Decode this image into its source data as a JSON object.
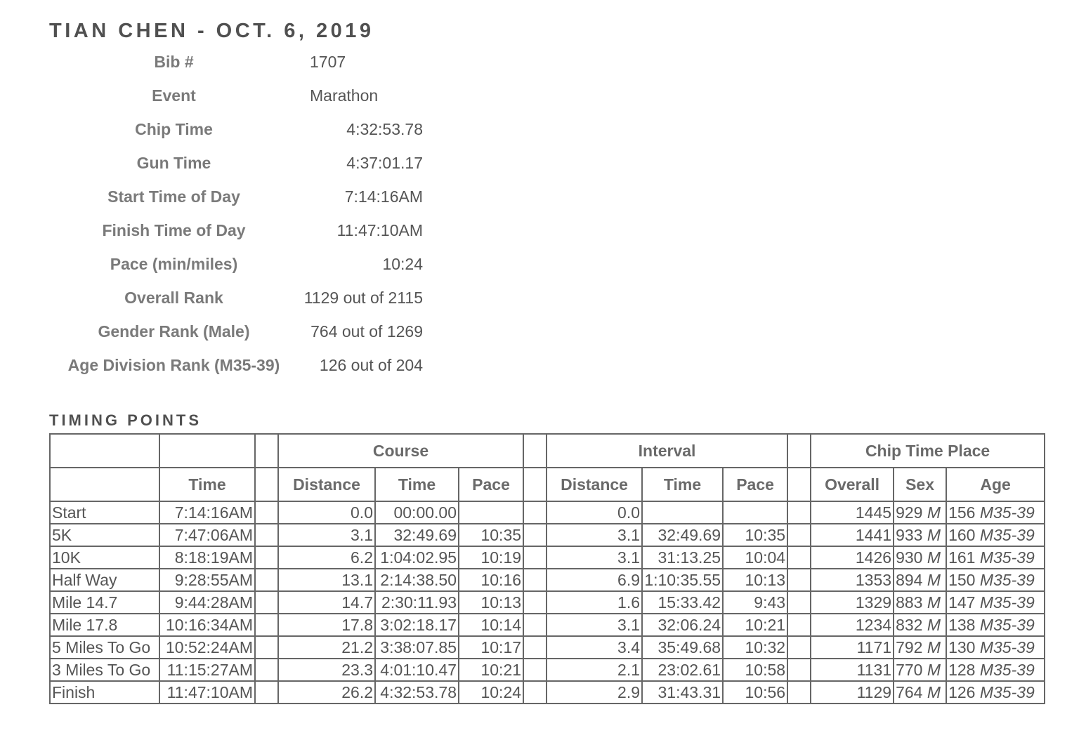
{
  "header": {
    "title": "TIAN CHEN - OCT. 6, 2019"
  },
  "summary": [
    {
      "label": "Bib #",
      "value": "1707",
      "align": "left"
    },
    {
      "label": "Event",
      "value": "Marathon",
      "align": "left"
    },
    {
      "label": "Chip Time",
      "value": "4:32:53.78",
      "align": "right"
    },
    {
      "label": "Gun Time",
      "value": "4:37:01.17",
      "align": "right"
    },
    {
      "label": "Start Time of Day",
      "value": "7:14:16AM",
      "align": "right"
    },
    {
      "label": "Finish Time of Day",
      "value": "11:47:10AM",
      "align": "right"
    },
    {
      "label": "Pace (min/miles)",
      "value": "10:24",
      "align": "right"
    },
    {
      "label": "Overall Rank",
      "value": "1129 out of 2115",
      "align": "right"
    },
    {
      "label": "Gender Rank (Male)",
      "value": "764 out of 1269",
      "align": "right"
    },
    {
      "label": "Age Division Rank (M35-39)",
      "value": "126 out of 204",
      "align": "right"
    }
  ],
  "timing": {
    "section_title": "TIMING POINTS",
    "group_headers": {
      "course": "Course",
      "interval": "Interval",
      "chip_time_place": "Chip Time Place"
    },
    "col_headers": {
      "time": "Time",
      "course_distance": "Distance",
      "course_time": "Time",
      "course_pace": "Pace",
      "interval_distance": "Distance",
      "interval_time": "Time",
      "interval_pace": "Pace",
      "overall": "Overall",
      "sex": "Sex",
      "age": "Age"
    },
    "rows": [
      {
        "point": "Start",
        "time": "7:14:16AM",
        "c_dist": "0.0",
        "c_time": "00:00.00",
        "c_pace": "",
        "i_dist": "0.0",
        "i_time": "",
        "i_pace": "",
        "overall": "1445",
        "sex_num": "929",
        "sex_code": "M",
        "age_num": "156",
        "age_div": "M35-39"
      },
      {
        "point": "5K",
        "time": "7:47:06AM",
        "c_dist": "3.1",
        "c_time": "32:49.69",
        "c_pace": "10:35",
        "i_dist": "3.1",
        "i_time": "32:49.69",
        "i_pace": "10:35",
        "overall": "1441",
        "sex_num": "933",
        "sex_code": "M",
        "age_num": "160",
        "age_div": "M35-39"
      },
      {
        "point": "10K",
        "time": "8:18:19AM",
        "c_dist": "6.2",
        "c_time": "1:04:02.95",
        "c_pace": "10:19",
        "i_dist": "3.1",
        "i_time": "31:13.25",
        "i_pace": "10:04",
        "overall": "1426",
        "sex_num": "930",
        "sex_code": "M",
        "age_num": "161",
        "age_div": "M35-39"
      },
      {
        "point": "Half Way",
        "time": "9:28:55AM",
        "c_dist": "13.1",
        "c_time": "2:14:38.50",
        "c_pace": "10:16",
        "i_dist": "6.9",
        "i_time": "1:10:35.55",
        "i_pace": "10:13",
        "overall": "1353",
        "sex_num": "894",
        "sex_code": "M",
        "age_num": "150",
        "age_div": "M35-39"
      },
      {
        "point": "Mile 14.7",
        "time": "9:44:28AM",
        "c_dist": "14.7",
        "c_time": "2:30:11.93",
        "c_pace": "10:13",
        "i_dist": "1.6",
        "i_time": "15:33.42",
        "i_pace": "9:43",
        "overall": "1329",
        "sex_num": "883",
        "sex_code": "M",
        "age_num": "147",
        "age_div": "M35-39"
      },
      {
        "point": "Mile 17.8",
        "time": "10:16:34AM",
        "c_dist": "17.8",
        "c_time": "3:02:18.17",
        "c_pace": "10:14",
        "i_dist": "3.1",
        "i_time": "32:06.24",
        "i_pace": "10:21",
        "overall": "1234",
        "sex_num": "832",
        "sex_code": "M",
        "age_num": "138",
        "age_div": "M35-39"
      },
      {
        "point": "5 Miles To Go",
        "time": "10:52:24AM",
        "c_dist": "21.2",
        "c_time": "3:38:07.85",
        "c_pace": "10:17",
        "i_dist": "3.4",
        "i_time": "35:49.68",
        "i_pace": "10:32",
        "overall": "1171",
        "sex_num": "792",
        "sex_code": "M",
        "age_num": "130",
        "age_div": "M35-39"
      },
      {
        "point": "3 Miles To Go",
        "time": "11:15:27AM",
        "c_dist": "23.3",
        "c_time": "4:01:10.47",
        "c_pace": "10:21",
        "i_dist": "2.1",
        "i_time": "23:02.61",
        "i_pace": "10:58",
        "overall": "1131",
        "sex_num": "770",
        "sex_code": "M",
        "age_num": "128",
        "age_div": "M35-39"
      },
      {
        "point": "Finish",
        "time": "11:47:10AM",
        "c_dist": "26.2",
        "c_time": "4:32:53.78",
        "c_pace": "10:24",
        "i_dist": "2.9",
        "i_time": "31:43.31",
        "i_pace": "10:56",
        "overall": "1129",
        "sex_num": "764",
        "sex_code": "M",
        "age_num": "126",
        "age_div": "M35-39"
      }
    ]
  }
}
